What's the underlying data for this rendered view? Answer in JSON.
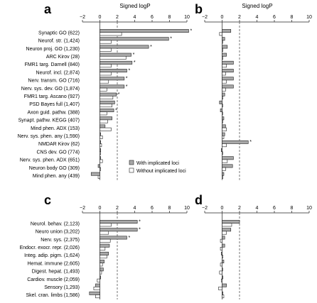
{
  "axis_title": "Signed logP",
  "colors": {
    "with": "#a8a8a8",
    "without": "#ffffff",
    "stroke": "#222222",
    "dashed": "#555555"
  },
  "legend": {
    "with": "With implicated loci",
    "without": "Without implicated loci"
  },
  "chart_data": [
    {
      "panel": "a",
      "type": "bar",
      "xlim": [
        -2,
        10
      ],
      "xticks": [
        "−2",
        "0",
        "2",
        "4",
        "6",
        "8",
        "10"
      ],
      "threshold": 2,
      "categories": [
        "Synaptic GO (622)",
        "Neurof. str. (1,424)",
        "Neuron proj. GO (1,230)",
        "ARC Kirov (28)",
        "FMR1 targ. Darnell (840)",
        "Neurof. incl. (2,874)",
        "Nerv. transm. GO (716)",
        "Nerv. sys. dev. GO (1,874)",
        "FMR1 targ. Ascano (927)",
        "PSD Bayes full (1,407)",
        "Axon guid. pathw. (388)",
        "Synapt. pathw. KEGG (407)",
        "Mind phen. ADX (153)",
        "Nerv. sys. phen. any (1,590)",
        "NMDAR Kirov (62)",
        "CNS dev. GO (774)",
        "Nerv. sys. phen. ADX (651)",
        "Neuron body GO (309)",
        "Mind phen. any (439)"
      ],
      "series": [
        {
          "name": "With implicated loci",
          "values": [
            10.2,
            7.9,
            5.6,
            3.6,
            3.7,
            3.1,
            2.8,
            2.8,
            1.9,
            1.7,
            1.6,
            1.4,
            0.6,
            0.1,
            0.1,
            0.1,
            0.1,
            -0.2,
            -1.0
          ]
        },
        {
          "name": "Without implicated loci",
          "values": [
            2.5,
            1.3,
            1.3,
            3.0,
            1.3,
            1.3,
            1.0,
            0.8,
            1.5,
            1.4,
            0.8,
            0.9,
            1.3,
            0.3,
            0.2,
            0.1,
            0.3,
            0.1,
            -0.2
          ]
        }
      ],
      "stars": [
        0,
        1,
        2,
        3,
        4,
        5,
        6,
        7,
        8,
        10
      ]
    },
    {
      "panel": "b",
      "type": "bar",
      "xlim": [
        -2,
        10
      ],
      "xticks": [
        "−2",
        "0",
        "2",
        "4",
        "6",
        "8",
        "10"
      ],
      "threshold": 2,
      "categories_from": "a",
      "series": [
        {
          "name": "With implicated loci",
          "values": [
            1.0,
            0.3,
            0.6,
            0.5,
            1.3,
            1.3,
            1.3,
            1.3,
            0.3,
            -0.3,
            -0.2,
            0.2,
            0.4,
            0.3,
            3.0,
            -0.1,
            1.3,
            1.2,
            0.2
          ]
        },
        {
          "name": "Without implicated loci",
          "values": [
            -0.3,
            0.0,
            0.1,
            0.1,
            0.5,
            0.4,
            0.5,
            0.4,
            0.1,
            0.0,
            0.0,
            0.1,
            0.5,
            0.2,
            0.5,
            0.0,
            0.6,
            0.4,
            0.1
          ]
        }
      ],
      "stars": [
        14
      ]
    },
    {
      "panel": "c",
      "type": "bar",
      "xlim": [
        -2,
        10
      ],
      "xticks": [
        "−2",
        "0",
        "2",
        "4",
        "6",
        "8",
        "10"
      ],
      "threshold": 2,
      "categories": [
        "Neurol. behav. (2,123)",
        "Neuro union (3,202)",
        "Nerv. sys. (2,375)",
        "Endocr. exocr. repr. (2,026)",
        "Integ. adip. pigm. (1,624)",
        "Hemat. immune (2,605)",
        "Digest. hepat. (1,493)",
        "Cardiov. muscle (2,059)",
        "Sensory (1,293)",
        "Skel. cran. limbs (1,586)"
      ],
      "series": [
        {
          "name": "With implicated loci",
          "values": [
            4.3,
            4.3,
            3.1,
            1.1,
            1.0,
            0.5,
            0.4,
            0.1,
            -0.5,
            -1.2
          ]
        },
        {
          "name": "Without implicated loci",
          "values": [
            1.3,
            1.0,
            1.2,
            0.6,
            0.8,
            0.3,
            0.2,
            -0.3,
            -0.7,
            -0.5
          ]
        }
      ],
      "stars": [
        0,
        1,
        2
      ]
    },
    {
      "panel": "d",
      "type": "bar",
      "xlim": [
        -2,
        10
      ],
      "xticks": [
        "−2",
        "0",
        "2",
        "4",
        "6",
        "8",
        "10"
      ],
      "threshold": 2,
      "categories_from": "c",
      "series": [
        {
          "name": "With implicated loci",
          "values": [
            2.0,
            1.0,
            0.3,
            0.3,
            -0.1,
            0.2,
            0.0,
            0.1,
            0.5,
            0.1
          ]
        },
        {
          "name": "Without implicated loci",
          "values": [
            1.1,
            0.5,
            -0.2,
            -0.2,
            0.1,
            -0.2,
            -0.3,
            -0.1,
            -0.4,
            0.2
          ]
        }
      ],
      "stars": []
    }
  ]
}
